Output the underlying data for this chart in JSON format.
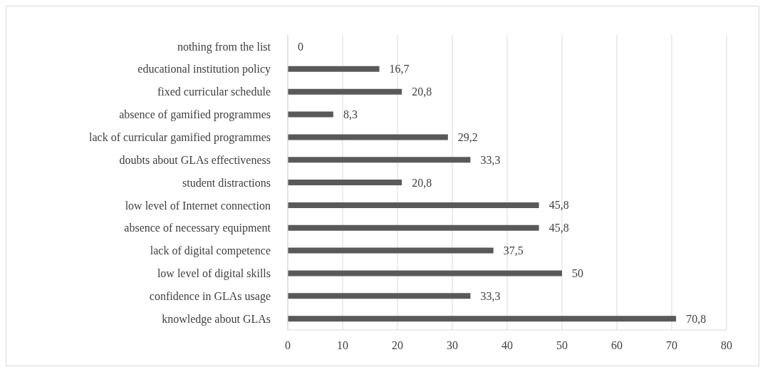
{
  "chart_data": {
    "type": "bar",
    "orientation": "horizontal",
    "categories": [
      "nothing from the list",
      "educational institution policy",
      "fixed curricular schedule",
      "absence of gamified programmes",
      "lack of curricular gamified programmes",
      "doubts about GLAs effectiveness",
      "student distractions",
      "low level of Internet connection",
      "absence of necessary equipment",
      "lack of digital competence",
      "low level of digital skills",
      "confidence in GLAs usage",
      "knowledge about GLAs"
    ],
    "values": [
      0,
      16.7,
      20.8,
      8.3,
      29.2,
      33.3,
      20.8,
      45.8,
      45.8,
      37.5,
      50,
      33.3,
      70.8
    ],
    "value_labels": [
      "0",
      "16,7",
      "20,8",
      "8,3",
      "29,2",
      "33,3",
      "20,8",
      "45,8",
      "45,8",
      "37,5",
      "50",
      "33,3",
      "70,8"
    ],
    "color": "#595959",
    "xlim": [
      0,
      80
    ],
    "xticks": [
      0,
      10,
      20,
      30,
      40,
      50,
      60,
      70,
      80
    ],
    "grid": "x"
  }
}
